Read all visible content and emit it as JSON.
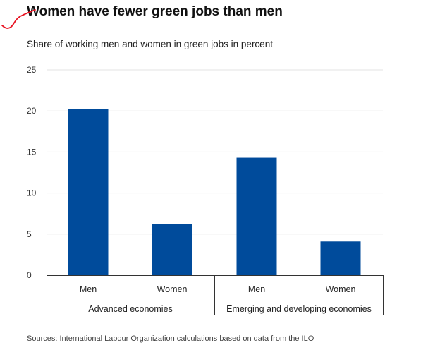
{
  "header": {
    "title": "Women have fewer green jobs than men",
    "subtitle": "Share of working men and women in green jobs in percent"
  },
  "footer": {
    "source": "Sources: International Labour Organization calculations based on data from the ILO"
  },
  "colors": {
    "bar": "#004b9b",
    "annotation": "#e8101f",
    "grid": "#e3e3e3"
  },
  "chart_data": {
    "type": "bar",
    "title": "Women have fewer green jobs than men",
    "subtitle": "Share of working men and women in green jobs in percent",
    "xlabel": "",
    "ylabel": "",
    "ylim": [
      0,
      25
    ],
    "yticks": [
      "0",
      "5",
      "10",
      "15",
      "20",
      "25"
    ],
    "grid": true,
    "legend": "none",
    "categories": [
      "Men",
      "Women",
      "Men",
      "Women"
    ],
    "groups": [
      {
        "label": "Advanced economies",
        "categories": [
          "Men",
          "Women"
        ]
      },
      {
        "label": "Emerging and developing economies",
        "categories": [
          "Men",
          "Women"
        ]
      }
    ],
    "values": [
      20.2,
      6.2,
      14.3,
      4.1
    ]
  }
}
